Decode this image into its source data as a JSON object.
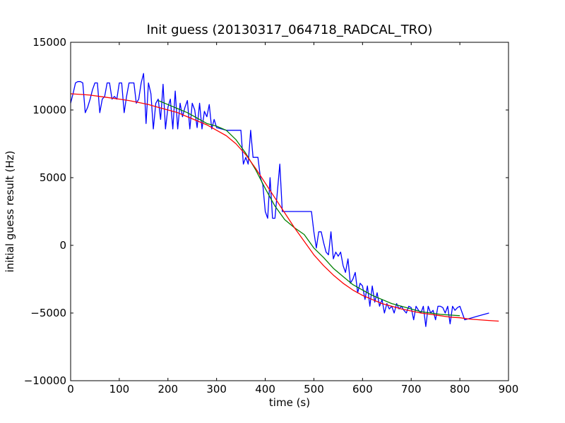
{
  "chart_data": {
    "type": "line",
    "title": "Init guess (20130317_064718_RADCAL_TRO)",
    "xlabel": "time (s)",
    "ylabel": "initial guess result (Hz)",
    "xlim": [
      0,
      900
    ],
    "ylim": [
      -10000,
      15000
    ],
    "xticks": [
      0,
      100,
      200,
      300,
      400,
      500,
      600,
      700,
      800,
      900
    ],
    "yticks": [
      -10000,
      -5000,
      0,
      5000,
      10000,
      15000
    ],
    "xtick_labels": [
      "0",
      "100",
      "200",
      "300",
      "400",
      "500",
      "600",
      "700",
      "800",
      "900"
    ],
    "ytick_labels": [
      "−10000",
      "−5000",
      "0",
      "5000",
      "10000",
      "15000"
    ],
    "grid": false,
    "legend": "none",
    "series": [
      {
        "color": "#0000ff",
        "x": [
          0,
          5,
          10,
          15,
          20,
          25,
          30,
          35,
          40,
          45,
          50,
          55,
          60,
          65,
          70,
          75,
          80,
          85,
          90,
          95,
          100,
          105,
          110,
          115,
          120,
          125,
          130,
          135,
          140,
          145,
          150,
          155,
          160,
          165,
          170,
          175,
          180,
          185,
          190,
          195,
          200,
          205,
          210,
          215,
          220,
          225,
          230,
          235,
          240,
          245,
          250,
          255,
          260,
          265,
          270,
          275,
          280,
          285,
          290,
          295,
          300,
          310,
          320,
          330,
          340,
          350,
          355,
          360,
          365,
          370,
          375,
          380,
          385,
          390,
          395,
          400,
          405,
          410,
          415,
          420,
          425,
          430,
          435,
          440,
          445,
          450,
          455,
          460,
          465,
          470,
          475,
          480,
          485,
          490,
          495,
          500,
          505,
          510,
          515,
          520,
          525,
          530,
          535,
          540,
          545,
          550,
          555,
          560,
          565,
          570,
          575,
          580,
          585,
          590,
          595,
          600,
          605,
          610,
          615,
          620,
          625,
          630,
          635,
          640,
          645,
          650,
          655,
          660,
          665,
          670,
          675,
          680,
          685,
          690,
          695,
          700,
          705,
          710,
          715,
          720,
          725,
          730,
          735,
          740,
          745,
          750,
          755,
          760,
          765,
          770,
          775,
          780,
          785,
          790,
          795,
          800,
          810,
          820,
          830,
          840,
          850,
          860
        ],
        "y": [
          10500,
          11200,
          12000,
          12100,
          12100,
          12000,
          9800,
          10200,
          10800,
          11500,
          12000,
          12000,
          9800,
          10800,
          11000,
          12000,
          12000,
          10800,
          11000,
          10800,
          12000,
          12000,
          9800,
          11000,
          12000,
          12000,
          12000,
          10500,
          10800,
          12000,
          12700,
          9000,
          12000,
          11200,
          8600,
          10500,
          10800,
          9300,
          11900,
          8600,
          10200,
          10800,
          8600,
          11400,
          8600,
          10500,
          9500,
          10200,
          10700,
          8600,
          10500,
          10000,
          8700,
          10500,
          8600,
          9900,
          9500,
          10400,
          8600,
          9300,
          8700,
          8600,
          8500,
          8500,
          8500,
          8500,
          6000,
          6500,
          6000,
          8500,
          6500,
          6500,
          6500,
          5000,
          4500,
          2500,
          2000,
          5000,
          2000,
          2000,
          4000,
          6000,
          2500,
          2500,
          2500,
          2500,
          2500,
          2500,
          2500,
          2500,
          2500,
          2500,
          2500,
          2500,
          2500,
          1000,
          -200,
          1000,
          1000,
          200,
          -500,
          -700,
          1000,
          -1000,
          -500,
          -800,
          -500,
          -1500,
          -2000,
          -1000,
          -2800,
          -2500,
          -2000,
          -3500,
          -2800,
          -3000,
          -4000,
          -3000,
          -4500,
          -3000,
          -4200,
          -3500,
          -4500,
          -4000,
          -5000,
          -4300,
          -4700,
          -4500,
          -5000,
          -4300,
          -4700,
          -4500,
          -4800,
          -5000,
          -4500,
          -4600,
          -5500,
          -4500,
          -4800,
          -5000,
          -4500,
          -6000,
          -4500,
          -5000,
          -4800,
          -5500,
          -4500,
          -4500,
          -4600,
          -5000,
          -4500,
          -5800,
          -4500,
          -4800,
          -4600,
          -4500,
          -5500,
          -5400,
          -5300,
          -5200,
          -5100,
          -5000
        ]
      },
      {
        "color": "#008000",
        "x": [
          180,
          200,
          220,
          240,
          260,
          280,
          300,
          320,
          340,
          360,
          380,
          400,
          420,
          440,
          460,
          480,
          500,
          520,
          540,
          560,
          580,
          600,
          620,
          640,
          660,
          680,
          700,
          720,
          740,
          760,
          780,
          800
        ],
        "y": [
          10700,
          10400,
          10100,
          9800,
          9400,
          9000,
          8800,
          8500,
          7800,
          6800,
          5600,
          4200,
          2900,
          1900,
          1300,
          800,
          -200,
          -900,
          -1700,
          -2300,
          -2900,
          -3300,
          -3700,
          -4000,
          -4300,
          -4500,
          -4700,
          -4900,
          -5000,
          -5100,
          -5150,
          -5200
        ]
      },
      {
        "color": "#ff0000",
        "x": [
          0,
          20,
          40,
          60,
          80,
          100,
          120,
          140,
          160,
          180,
          200,
          220,
          240,
          260,
          280,
          300,
          320,
          340,
          360,
          380,
          400,
          420,
          440,
          460,
          480,
          500,
          520,
          540,
          560,
          580,
          600,
          620,
          640,
          660,
          680,
          700,
          720,
          740,
          760,
          780,
          800,
          820,
          840,
          860,
          880
        ],
        "y": [
          11200,
          11150,
          11100,
          11000,
          10900,
          10800,
          10700,
          10550,
          10400,
          10200,
          10000,
          9800,
          9500,
          9200,
          8900,
          8500,
          8100,
          7500,
          6700,
          5700,
          4600,
          3500,
          2400,
          1300,
          300,
          -700,
          -1500,
          -2200,
          -2800,
          -3300,
          -3700,
          -4000,
          -4300,
          -4500,
          -4700,
          -4850,
          -5000,
          -5100,
          -5200,
          -5300,
          -5350,
          -5450,
          -5500,
          -5550,
          -5600
        ]
      }
    ]
  }
}
